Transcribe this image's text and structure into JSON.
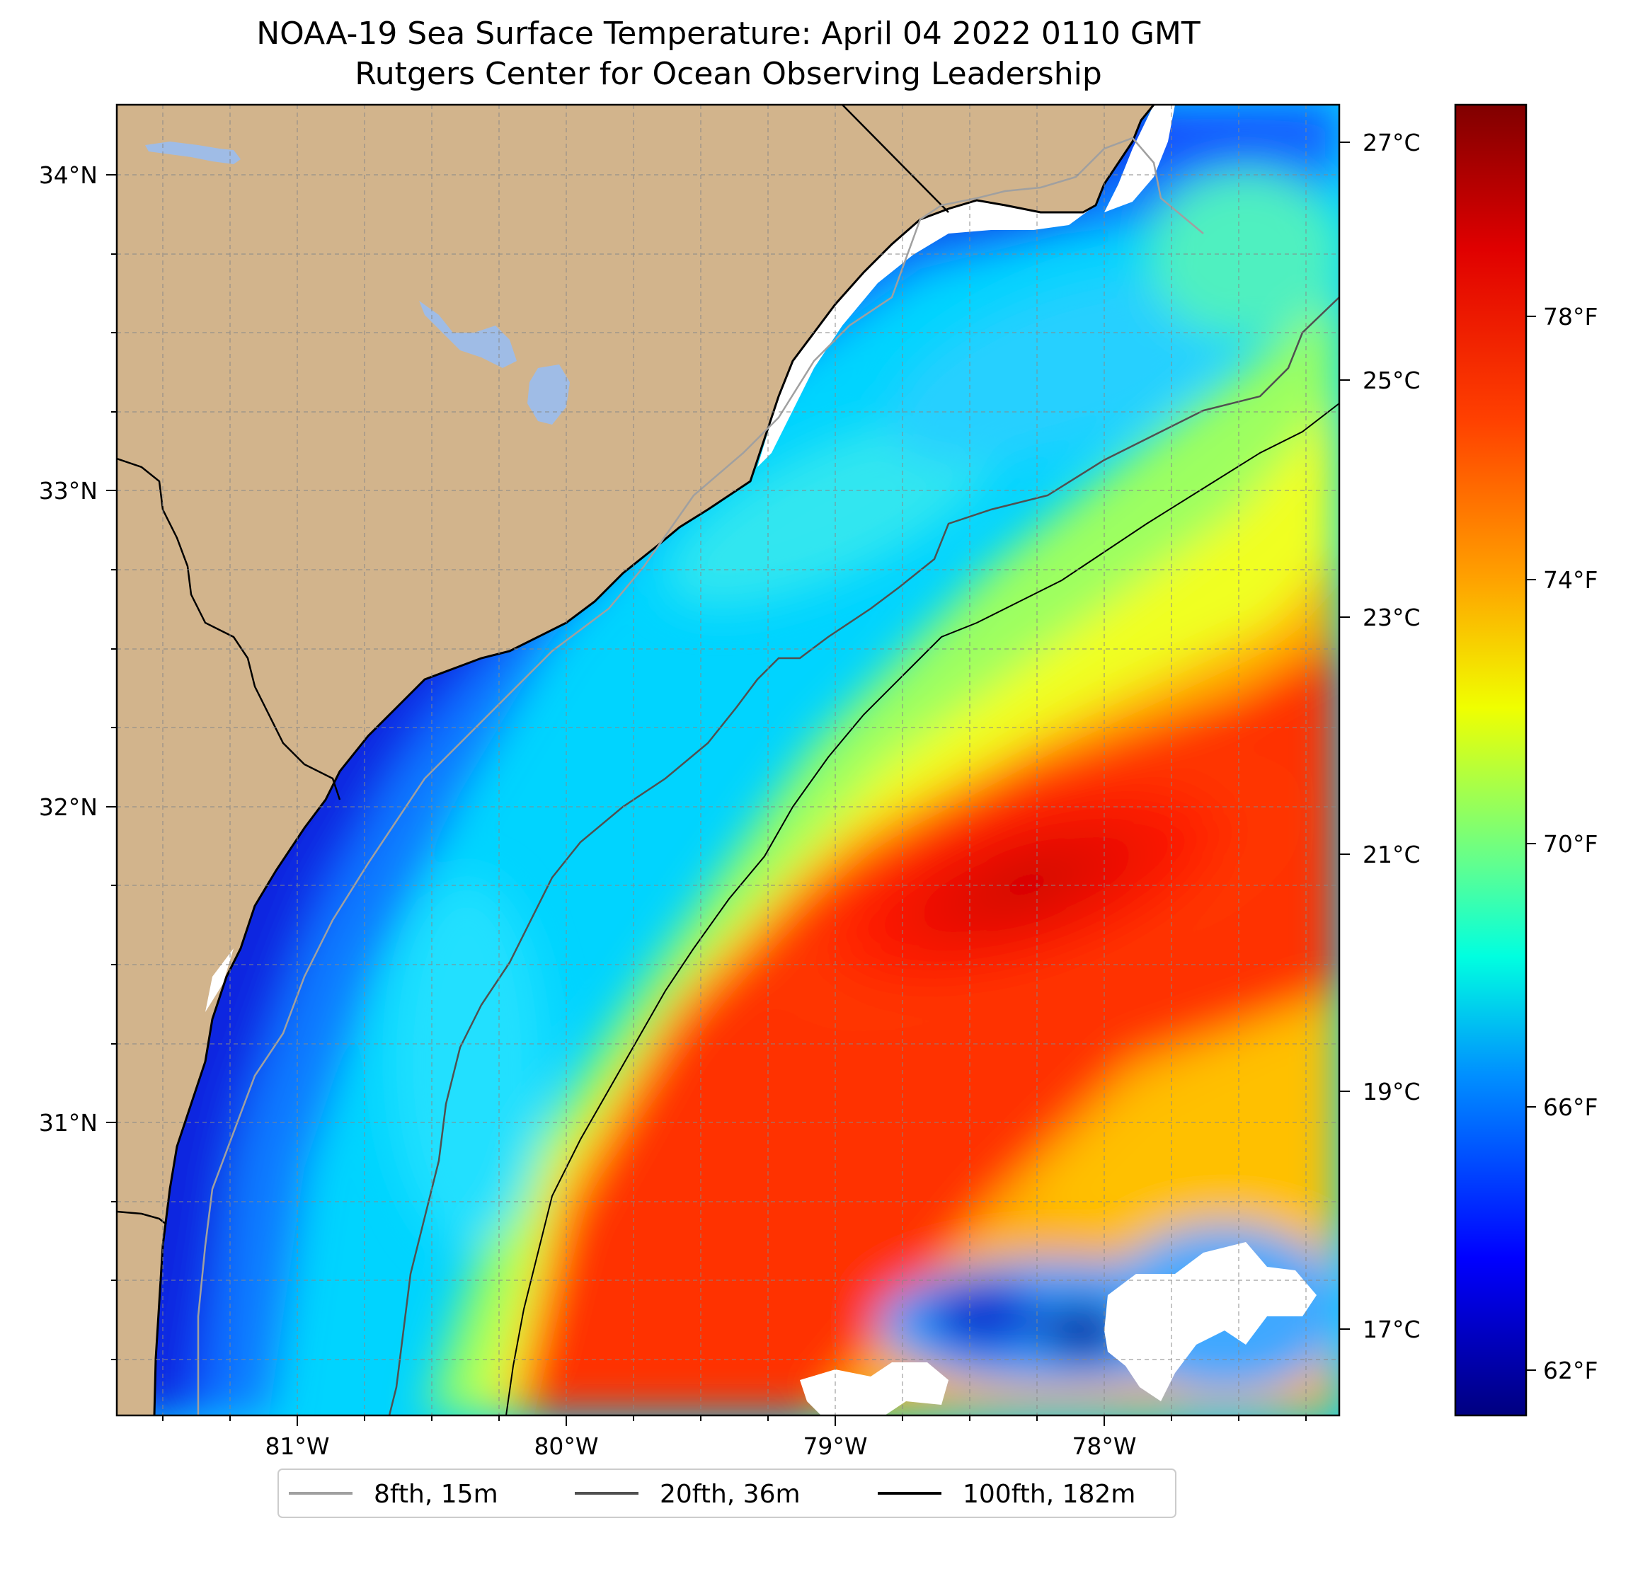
{
  "title": {
    "line1": "NOAA-19 Sea Surface Temperature: April 04 2022 0110 GMT",
    "line2": "Rutgers Center for Ocean Observing Leadership"
  },
  "map": {
    "lat_labels": [
      "34°N",
      "33°N",
      "32°N",
      "31°N"
    ],
    "lon_labels": [
      "81°W",
      "80°W",
      "79°W",
      "78°W"
    ]
  },
  "colorbar": {
    "celsius_labels": [
      "27°C",
      "25°C",
      "23°C",
      "21°C",
      "19°C",
      "17°C"
    ],
    "fahrenheit_labels": [
      "78°F",
      "74°F",
      "70°F",
      "66°F",
      "62°F"
    ],
    "colormap": [
      "#800000",
      "#ff0000",
      "#ff8000",
      "#ffff00",
      "#80ff80",
      "#00ffff",
      "#0080ff",
      "#0000ff",
      "#000080"
    ]
  },
  "legend": {
    "items": [
      {
        "label": "8fth, 15m",
        "color": "#a0a0a0"
      },
      {
        "label": "20fth, 36m",
        "color": "#505050"
      },
      {
        "label": "100fth, 182m",
        "color": "#000000"
      }
    ]
  },
  "colors": {
    "land": "#d2b48c",
    "lake": "#9fbce6",
    "no_data": "#ffffff"
  }
}
